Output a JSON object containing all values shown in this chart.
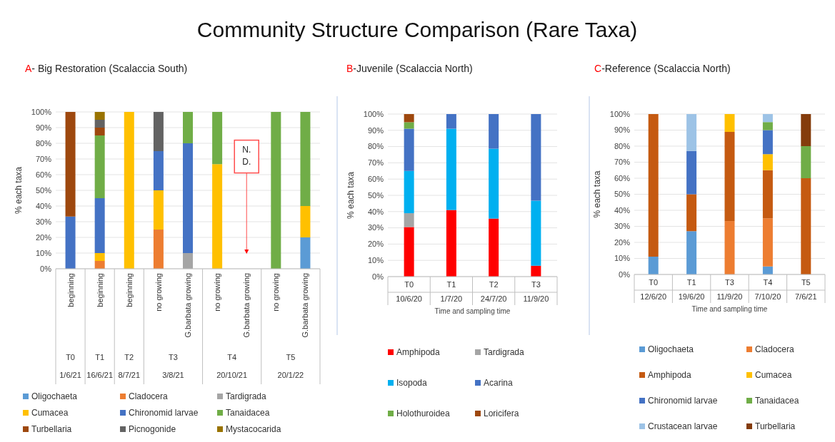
{
  "chart_data": [
    {
      "type": "bar",
      "stacked": true,
      "title": "Community Structure Comparison (Rare Taxa)",
      "subtitle": "A- Big Restoration (Scalaccia South)",
      "ylabel": "% each taxa",
      "categories": [
        "beginning",
        "beginning",
        "beginning",
        "no growing",
        "G.barbata growing",
        "no growing",
        "G.barbata growing",
        "no growing",
        "G.barbata growing"
      ],
      "annotations": [
        "T0",
        "T1",
        "T2",
        "T3",
        "T4",
        "T5",
        "1/6/21",
        "16/6/21",
        "8/7/21",
        "3/8/21",
        "20/10/21",
        "20/1/22",
        "N. D."
      ],
      "ylim": [
        0,
        100
      ],
      "yticks": [
        {
          "value": 0,
          "label": "0%"
        },
        {
          "value": 10,
          "label": "10%"
        },
        {
          "value": 20,
          "label": "20%"
        },
        {
          "value": 30,
          "label": "30%"
        },
        {
          "value": 40,
          "label": "40%"
        },
        {
          "value": 50,
          "label": "50%"
        },
        {
          "value": 60,
          "label": "60%"
        },
        {
          "value": 70,
          "label": "70%"
        },
        {
          "value": 80,
          "label": "80%"
        },
        {
          "value": 90,
          "label": "90%"
        },
        {
          "value": 100,
          "label": "100%"
        }
      ],
      "grid": "y",
      "legend": "bottom",
      "series": [
        {
          "name": "Oligochaeta",
          "color": "#5b9bd5",
          "values": [
            null,
            null,
            null,
            null,
            null,
            null,
            null,
            null,
            20
          ]
        },
        {
          "name": "Cladocera",
          "color": "#ed7d31",
          "values": [
            null,
            5,
            null,
            25,
            null,
            null,
            null,
            null,
            null
          ]
        },
        {
          "name": "Tardigrada",
          "color": "#a5a5a5",
          "values": [
            null,
            null,
            null,
            null,
            10,
            null,
            null,
            null,
            null
          ]
        },
        {
          "name": "Cumacea",
          "color": "#ffc000",
          "values": [
            null,
            5,
            100,
            25,
            null,
            66.7,
            null,
            null,
            20
          ]
        },
        {
          "name": "Chironomid larvae",
          "color": "#4472c4",
          "values": [
            33.3,
            35,
            null,
            25,
            70,
            null,
            null,
            null,
            null
          ]
        },
        {
          "name": "Tanaidacea",
          "color": "#70ad47",
          "values": [
            null,
            40,
            null,
            null,
            20,
            33.3,
            null,
            100,
            60
          ]
        },
        {
          "name": "Turbellaria",
          "color": "#9e480e",
          "values": [
            66.7,
            5,
            null,
            null,
            null,
            null,
            null,
            null,
            null
          ]
        },
        {
          "name": "Picnogonide",
          "color": "#636363",
          "values": [
            null,
            5,
            null,
            25,
            null,
            null,
            null,
            null,
            null
          ]
        },
        {
          "name": "Mystacocarida",
          "color": "#997300",
          "values": [
            null,
            5,
            null,
            null,
            null,
            null,
            null,
            null,
            null
          ]
        }
      ]
    },
    {
      "type": "bar",
      "stacked": true,
      "title": "B-Juvenile (Scalaccia North)",
      "ylabel": "% each taxa",
      "xlabel": "Time and sampling time",
      "categories": [
        "T0",
        "T1",
        "T2",
        "T3"
      ],
      "annotations": [
        "10/6/20",
        "1/7/20",
        "24/7/20",
        "11/9/20"
      ],
      "ylim": [
        0,
        100
      ],
      "yticks": [
        {
          "value": 0,
          "label": "0%"
        },
        {
          "value": 10,
          "label": "10%"
        },
        {
          "value": 20,
          "label": "20%"
        },
        {
          "value": 30,
          "label": "30%"
        },
        {
          "value": 40,
          "label": "40%"
        },
        {
          "value": 50,
          "label": "50%"
        },
        {
          "value": 60,
          "label": "60%"
        },
        {
          "value": 70,
          "label": "70%"
        },
        {
          "value": 80,
          "label": "80%"
        },
        {
          "value": 90,
          "label": "90%"
        },
        {
          "value": 100,
          "label": "100%"
        }
      ],
      "grid": "y",
      "legend": "bottom",
      "series": [
        {
          "name": "Amphipoda",
          "color": "#ff0000",
          "values": [
            30.5,
            41,
            35.7,
            6.7
          ]
        },
        {
          "name": "Tardigrada",
          "color": "#a5a5a5",
          "values": [
            8.5,
            null,
            null,
            null
          ]
        },
        {
          "name": "Isopoda",
          "color": "#00b0f0",
          "values": [
            26,
            50,
            43,
            40
          ]
        },
        {
          "name": "Acarina",
          "color": "#4472c4",
          "values": [
            26,
            9,
            21.3,
            53.3
          ]
        },
        {
          "name": "Holothuroidea",
          "color": "#70ad47",
          "values": [
            4,
            null,
            null,
            null
          ]
        },
        {
          "name": "Loricifera",
          "color": "#9e480e",
          "values": [
            5,
            null,
            null,
            null
          ]
        }
      ]
    },
    {
      "type": "bar",
      "stacked": true,
      "title": "C-Reference (Scalaccia North)",
      "ylabel": "% each taxa",
      "xlabel": "Time and sampling time",
      "categories": [
        "T0",
        "T1",
        "T3",
        "T4",
        "T5"
      ],
      "annotations": [
        "12/6/20",
        "19/6/20",
        "11/9/20",
        "7/10/20",
        "7/6/21"
      ],
      "ylim": [
        0,
        100
      ],
      "yticks": [
        {
          "value": 0,
          "label": "0%"
        },
        {
          "value": 10,
          "label": "10%"
        },
        {
          "value": 20,
          "label": "20%"
        },
        {
          "value": 30,
          "label": "30%"
        },
        {
          "value": 40,
          "label": "40%"
        },
        {
          "value": 50,
          "label": "50%"
        },
        {
          "value": 60,
          "label": "60%"
        },
        {
          "value": 70,
          "label": "70%"
        },
        {
          "value": 80,
          "label": "80%"
        },
        {
          "value": 90,
          "label": "90%"
        },
        {
          "value": 100,
          "label": "100%"
        }
      ],
      "grid": "y",
      "legend": "bottom",
      "series": [
        {
          "name": "Oligochaeta",
          "color": "#5b9bd5",
          "values": [
            11.1,
            27,
            null,
            5,
            null
          ]
        },
        {
          "name": "Cladocera",
          "color": "#ed7d31",
          "values": [
            null,
            null,
            33.3,
            30,
            null
          ]
        },
        {
          "name": "Amphipoda",
          "color": "#c55a11",
          "values": [
            88.9,
            23,
            55.6,
            30,
            60
          ]
        },
        {
          "name": "Cumacea",
          "color": "#ffc000",
          "values": [
            null,
            null,
            11.1,
            10,
            null
          ]
        },
        {
          "name": "Chironomid larvae",
          "color": "#4472c4",
          "values": [
            null,
            27,
            null,
            15,
            null
          ]
        },
        {
          "name": "Tanaidacea",
          "color": "#70ad47",
          "values": [
            null,
            null,
            null,
            5,
            20
          ]
        },
        {
          "name": "Crustacean larvae",
          "color": "#9dc3e6",
          "values": [
            null,
            23,
            null,
            5,
            null
          ]
        },
        {
          "name": "Turbellaria",
          "color": "#843c0c",
          "values": [
            null,
            null,
            null,
            null,
            20
          ]
        }
      ]
    }
  ]
}
